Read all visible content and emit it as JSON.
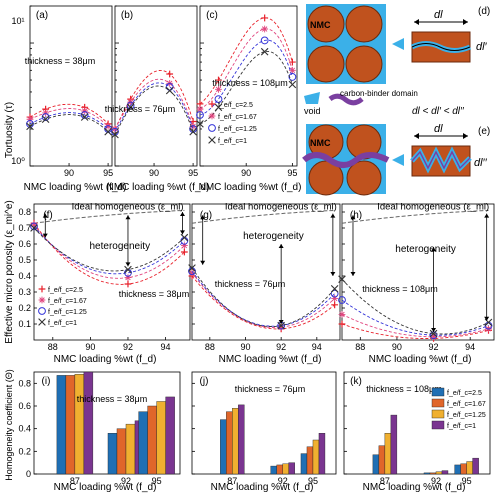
{
  "colors": {
    "s1": "#e8202a",
    "s2": "#e0457e",
    "s3": "#3434d8",
    "s4": "#333333",
    "ideal": "#666666",
    "bar1": "#1f6fb4",
    "bar2": "#e0662a",
    "bar3": "#f0b030",
    "bar4": "#7a3590",
    "particle": "#c0521e",
    "electrolyte": "#3bb0e8",
    "binder": "#7a3fa0"
  },
  "legend_labels": [
    "f_e/f_c=2.5",
    "f_e/f_c=1.67",
    "f_e/f_c=1.25",
    "f_e/f_c=1"
  ],
  "row1": {
    "ylabel": "Tortuosity (τ)",
    "xlabel": "NMC loading %wt (f_d)",
    "ytick_major": [
      "10⁰",
      "10¹"
    ],
    "panels": [
      {
        "label": "(a)",
        "thickness": "thickness = 38μm",
        "xticks": [
          "90",
          "95"
        ]
      },
      {
        "label": "(b)",
        "thickness": "thickness = 76μm",
        "xticks": [
          "90",
          "95"
        ]
      },
      {
        "label": "(c)",
        "thickness": "thickness = 108μm",
        "xticks": [
          "90",
          "95"
        ]
      }
    ]
  },
  "row2": {
    "ylabel": "Effective micro porosity (ε_mi^e)",
    "xlabel": "NMC loading %wt (f_d)",
    "yticks": [
      "0.1",
      "0.2",
      "0.3",
      "0.4",
      "0.5",
      "0.6",
      "0.7",
      "0.8"
    ],
    "ideal_label": "Ideal homogeneous (ε_mi)",
    "heterogeneity_label": "heterogeneity",
    "panels": [
      {
        "label": "(f)",
        "thickness": "thickness = 38μm",
        "xticks": [
          "88",
          "90",
          "92",
          "94"
        ]
      },
      {
        "label": "(g)",
        "thickness": "thickness = 76μm",
        "xticks": [
          "88",
          "90",
          "92",
          "94"
        ]
      },
      {
        "label": "(h)",
        "thickness": "thickness = 108μm",
        "xticks": [
          "88",
          "90",
          "92",
          "94"
        ]
      }
    ]
  },
  "row3": {
    "ylabel": "Homogeneity coefficient (Θ)",
    "xlabel": "NMC loading %wt (f_d)",
    "yticks": [
      "0",
      "0.2",
      "0.4",
      "0.6",
      "0.8"
    ],
    "xticks": [
      "87",
      "92",
      "95"
    ],
    "panels": [
      {
        "label": "(i)",
        "thickness": "thickness = 38μm"
      },
      {
        "label": "(j)",
        "thickness": "thickness = 76μm"
      },
      {
        "label": "(k)",
        "thickness": "thickness = 108μm"
      }
    ]
  },
  "schematic": {
    "d_label": "(d)",
    "e_label": "(e)",
    "nmc": "NMC",
    "dl": "dl",
    "dl1": "dl′",
    "dl2": "dl′′",
    "void": "void",
    "cbd": "carbon-binder domain",
    "inequality": "dl < dl′ < dl′′"
  },
  "chart_data": [
    {
      "type": "line",
      "title": "",
      "panel": "(a)",
      "xlabel": "NMC loading %wt (f_d)",
      "ylabel": "Tortuosity (τ)",
      "yscale": "log",
      "ylim": [
        1,
        20
      ],
      "xlim": [
        85,
        95.5
      ],
      "x": [
        85,
        87,
        92,
        95
      ],
      "series": [
        {
          "name": "f_e/f_c=2.5",
          "values": [
            2.5,
            2.9,
            3.0,
            2.2
          ]
        },
        {
          "name": "f_e/f_c=1.67",
          "values": [
            2.4,
            2.7,
            2.8,
            2.1
          ]
        },
        {
          "name": "f_e/f_c=1.25",
          "values": [
            2.2,
            2.5,
            2.6,
            2.0
          ]
        },
        {
          "name": "f_e/f_c=1",
          "values": [
            2.1,
            2.4,
            2.5,
            1.9
          ]
        }
      ]
    },
    {
      "type": "line",
      "title": "",
      "panel": "(b)",
      "xlabel": "NMC loading %wt (f_d)",
      "yscale": "log",
      "ylim": [
        1,
        20
      ],
      "xlim": [
        85,
        95.5
      ],
      "x": [
        85,
        87,
        92,
        95
      ],
      "series": [
        {
          "name": "f_e/f_c=2.5",
          "values": [
            2.0,
            3.5,
            5.6,
            2.3
          ]
        },
        {
          "name": "f_e/f_c=1.67",
          "values": [
            2.0,
            3.3,
            4.7,
            2.1
          ]
        },
        {
          "name": "f_e/f_c=1.25",
          "values": [
            1.9,
            3.1,
            4.4,
            2.0
          ]
        },
        {
          "name": "f_e/f_c=1",
          "values": [
            1.8,
            3.0,
            4.1,
            1.9
          ]
        }
      ]
    },
    {
      "type": "line",
      "title": "",
      "panel": "(c)",
      "xlabel": "NMC loading %wt (f_d)",
      "yscale": "log",
      "ylim": [
        1,
        20
      ],
      "xlim": [
        85,
        95.5
      ],
      "x": [
        85,
        87,
        92,
        95
      ],
      "series": [
        {
          "name": "f_e/f_c=2.5",
          "values": [
            3.2,
            5.0,
            16.0,
            7.0
          ]
        },
        {
          "name": "f_e/f_c=1.67",
          "values": [
            2.9,
            4.2,
            13.0,
            6.0
          ]
        },
        {
          "name": "f_e/f_c=1.25",
          "values": [
            2.6,
            3.5,
            10.5,
            5.3
          ]
        },
        {
          "name": "f_e/f_c=1",
          "values": [
            2.2,
            3.0,
            8.5,
            4.6
          ]
        }
      ]
    },
    {
      "type": "line",
      "title": "",
      "panel": "(f)",
      "xlabel": "NMC loading %wt (f_d)",
      "ylabel": "Effective micro porosity (ε_mi^e)",
      "ylim": [
        0.0,
        0.85
      ],
      "xlim": [
        87,
        95.3
      ],
      "x": [
        87,
        92,
        95
      ],
      "ideal_homogeneous": [
        0.73,
        0.79,
        0.81
      ],
      "series": [
        {
          "name": "f_e/f_c=2.5",
          "values": [
            0.73,
            0.35,
            0.55
          ]
        },
        {
          "name": "f_e/f_c=1.67",
          "values": [
            0.72,
            0.39,
            0.59
          ]
        },
        {
          "name": "f_e/f_c=1.25",
          "values": [
            0.71,
            0.42,
            0.62
          ]
        },
        {
          "name": "f_e/f_c=1",
          "values": [
            0.7,
            0.44,
            0.64
          ]
        }
      ]
    },
    {
      "type": "line",
      "title": "",
      "panel": "(g)",
      "xlabel": "NMC loading %wt (f_d)",
      "ylim": [
        0.0,
        0.85
      ],
      "xlim": [
        87,
        95.3
      ],
      "x": [
        87,
        92,
        95
      ],
      "ideal_homogeneous": [
        0.73,
        0.79,
        0.81
      ],
      "series": [
        {
          "name": "f_e/f_c=2.5",
          "values": [
            0.4,
            0.07,
            0.22
          ]
        },
        {
          "name": "f_e/f_c=1.67",
          "values": [
            0.42,
            0.08,
            0.26
          ]
        },
        {
          "name": "f_e/f_c=1.25",
          "values": [
            0.43,
            0.09,
            0.29
          ]
        },
        {
          "name": "f_e/f_c=1",
          "values": [
            0.45,
            0.09,
            0.32
          ]
        }
      ]
    },
    {
      "type": "line",
      "title": "",
      "panel": "(h)",
      "xlabel": "NMC loading %wt (f_d)",
      "ylim": [
        0.0,
        0.85
      ],
      "xlim": [
        87,
        95.3
      ],
      "x": [
        87,
        92,
        95
      ],
      "ideal_homogeneous": [
        0.73,
        0.79,
        0.81
      ],
      "series": [
        {
          "name": "f_e/f_c=2.5",
          "values": [
            0.1,
            0.01,
            0.06
          ]
        },
        {
          "name": "f_e/f_c=1.67",
          "values": [
            0.16,
            0.02,
            0.07
          ]
        },
        {
          "name": "f_e/f_c=1.25",
          "values": [
            0.25,
            0.03,
            0.09
          ]
        },
        {
          "name": "f_e/f_c=1",
          "values": [
            0.38,
            0.04,
            0.11
          ]
        }
      ]
    },
    {
      "type": "bar",
      "title": "",
      "panel": "(i)",
      "xlabel": "NMC loading %wt (f_d)",
      "ylabel": "Homogeneity coefficient (Θ)",
      "ylim": [
        0,
        0.9
      ],
      "categories": [
        "87",
        "92",
        "95"
      ],
      "series": [
        {
          "name": "f_e/f_c=2.5",
          "values": [
            0.87,
            0.36,
            0.55
          ]
        },
        {
          "name": "f_e/f_c=1.67",
          "values": [
            0.87,
            0.4,
            0.6
          ]
        },
        {
          "name": "f_e/f_c=1.25",
          "values": [
            0.88,
            0.44,
            0.64
          ]
        },
        {
          "name": "f_e/f_c=1",
          "values": [
            0.9,
            0.47,
            0.68
          ]
        }
      ]
    },
    {
      "type": "bar",
      "title": "",
      "panel": "(j)",
      "xlabel": "NMC loading %wt (f_d)",
      "ylim": [
        0,
        0.9
      ],
      "categories": [
        "87",
        "92",
        "95"
      ],
      "series": [
        {
          "name": "f_e/f_c=2.5",
          "values": [
            0.48,
            0.07,
            0.18
          ]
        },
        {
          "name": "f_e/f_c=1.67",
          "values": [
            0.55,
            0.08,
            0.24
          ]
        },
        {
          "name": "f_e/f_c=1.25",
          "values": [
            0.58,
            0.09,
            0.3
          ]
        },
        {
          "name": "f_e/f_c=1",
          "values": [
            0.61,
            0.1,
            0.36
          ]
        }
      ]
    },
    {
      "type": "bar",
      "title": "",
      "panel": "(k)",
      "xlabel": "NMC loading %wt (f_d)",
      "ylim": [
        0,
        0.9
      ],
      "categories": [
        "87",
        "92",
        "95"
      ],
      "series": [
        {
          "name": "f_e/f_c=2.5",
          "values": [
            0.17,
            0.01,
            0.08
          ]
        },
        {
          "name": "f_e/f_c=1.67",
          "values": [
            0.25,
            0.01,
            0.09
          ]
        },
        {
          "name": "f_e/f_c=1.25",
          "values": [
            0.36,
            0.02,
            0.11
          ]
        },
        {
          "name": "f_e/f_c=1",
          "values": [
            0.52,
            0.03,
            0.14
          ]
        }
      ]
    }
  ]
}
